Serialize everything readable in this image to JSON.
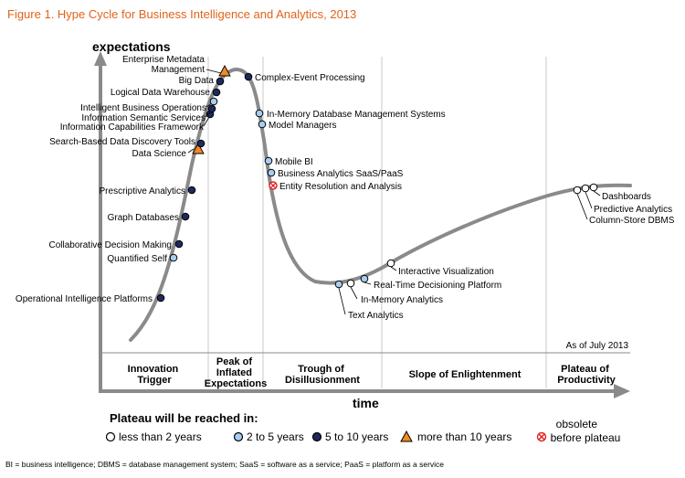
{
  "figure_title": "Figure 1. Hype Cycle for Business Intelligence and Analytics, 2013",
  "y_axis_label": "expectations",
  "x_axis_label": "time",
  "as_of": "As of July 2013",
  "phases": [
    {
      "lines": [
        "Innovation",
        "Trigger"
      ]
    },
    {
      "lines": [
        "Peak of",
        "Inflated",
        "Expectations"
      ]
    },
    {
      "lines": [
        "Trough of",
        "Disillusionment"
      ]
    },
    {
      "lines": [
        "Slope of Enlightenment"
      ]
    },
    {
      "lines": [
        "Plateau of",
        "Productivity"
      ]
    }
  ],
  "legend": {
    "title": "Plateau will be reached in:",
    "items": [
      {
        "key": "lt2",
        "label": "less than 2 years"
      },
      {
        "key": "2to5",
        "label": "2 to 5 years"
      },
      {
        "key": "5to10",
        "label": "5 to 10 years"
      },
      {
        "key": "gt10",
        "label": "more than 10 years"
      },
      {
        "key": "obsolete",
        "label_lines": [
          "obsolete",
          "before plateau"
        ]
      }
    ]
  },
  "marker_colors": {
    "lt2": "#ffffff",
    "2to5": "#a9cdf0",
    "5to10": "#1e2a5e",
    "gt10": "#f08a24",
    "obsolete": "#ffffff",
    "obsolete_x": "#e02020",
    "curve": "#8a8a8a",
    "title": "#e0641b"
  },
  "technologies": [
    {
      "name": "Operational Intelligence Platforms",
      "category": "5to10"
    },
    {
      "name": "Quantified Self",
      "category": "2to5"
    },
    {
      "name": "Collaborative Decision Making",
      "category": "5to10"
    },
    {
      "name": "Graph Databases",
      "category": "5to10"
    },
    {
      "name": "Prescriptive Analytics",
      "category": "5to10"
    },
    {
      "name": "Data Science",
      "category": "gt10"
    },
    {
      "name": "Search-Based Data Discovery Tools",
      "category": "5to10"
    },
    {
      "name": "Information Capabilities Framework",
      "category": "5to10"
    },
    {
      "name": "Information Semantic Services",
      "category": "5to10"
    },
    {
      "name": "Intelligent Business Operations",
      "category": "2to5"
    },
    {
      "name": "Logical Data Warehouse",
      "category": "5to10"
    },
    {
      "name": "Big Data",
      "category": "5to10"
    },
    {
      "name_lines": [
        "Enterprise Metadata",
        "Management"
      ],
      "category": "gt10"
    },
    {
      "name": "Complex-Event Processing",
      "category": "5to10"
    },
    {
      "name": "In-Memory Database Management Systems",
      "category": "2to5"
    },
    {
      "name": "Model Managers",
      "category": "2to5"
    },
    {
      "name": "Mobile BI",
      "category": "2to5"
    },
    {
      "name": "Business Analytics SaaS/PaaS",
      "category": "2to5"
    },
    {
      "name": "Entity Resolution and Analysis",
      "category": "obsolete"
    },
    {
      "name": "Text Analytics",
      "category": "2to5"
    },
    {
      "name": "In-Memory Analytics",
      "category": "lt2"
    },
    {
      "name": "Real-Time Decisioning Platform",
      "category": "2to5"
    },
    {
      "name": "Interactive Visualization",
      "category": "lt2"
    },
    {
      "name": "Column-Store DBMS",
      "category": "lt2"
    },
    {
      "name": "Predictive Analytics",
      "category": "lt2"
    },
    {
      "name": "Dashboards",
      "category": "lt2"
    }
  ],
  "footnote": "BI = business intelligence; DBMS = database management system; SaaS = software as a service; PaaS = platform as a service"
}
